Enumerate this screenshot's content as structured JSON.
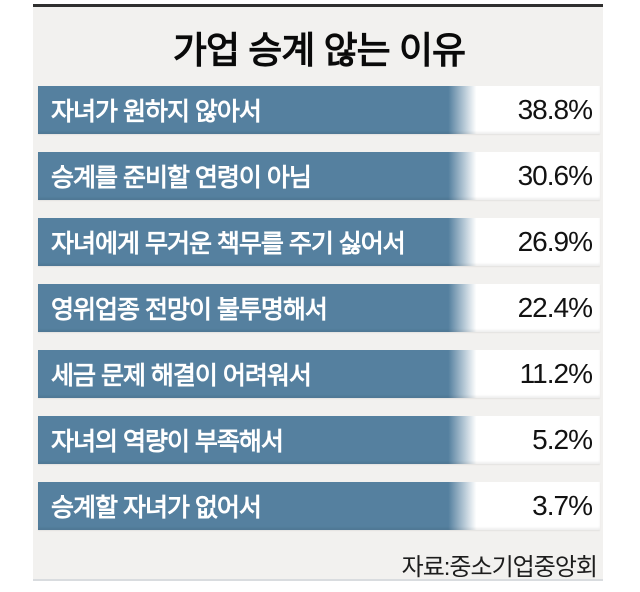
{
  "title": "가업 승계 않는 이유",
  "source": "자료:중소기업중앙회",
  "colors": {
    "bar-fill": "#55809f",
    "panel-bg": "#f2f1ef",
    "row-bg": "#ffffff",
    "top-rule": "#2f2f2f",
    "title-text": "#0a0a0a",
    "label-text": "#ffffff",
    "value-text": "#121212",
    "source-text": "#1d1d1d"
  },
  "chart_data": {
    "type": "bar",
    "orientation": "horizontal",
    "title": "가업 승계 않는 이유",
    "categories": [
      "자녀가 원하지 않아서",
      "승계를 준비할 연령이 아님",
      "자녀에게 무거운 책무를 주기 싫어서",
      "영위업종 전망이 불투명해서",
      "세금 문제 해결이 어려워서",
      "자녀의 역량이 부족해서",
      "승계할 자녀가 없어서"
    ],
    "values": [
      38.8,
      30.6,
      26.9,
      22.4,
      11.2,
      5.2,
      3.7
    ],
    "value_labels": [
      "38.8%",
      "30.6%",
      "26.9%",
      "22.4%",
      "11.2%",
      "5.2%",
      "3.7%"
    ],
    "unit": "%",
    "xlabel": "",
    "ylabel": "",
    "legend": false,
    "grid": false,
    "layout_note": "bars drawn at equal width with value printed as text at row right",
    "source": "자료:중소기업중앙회"
  }
}
